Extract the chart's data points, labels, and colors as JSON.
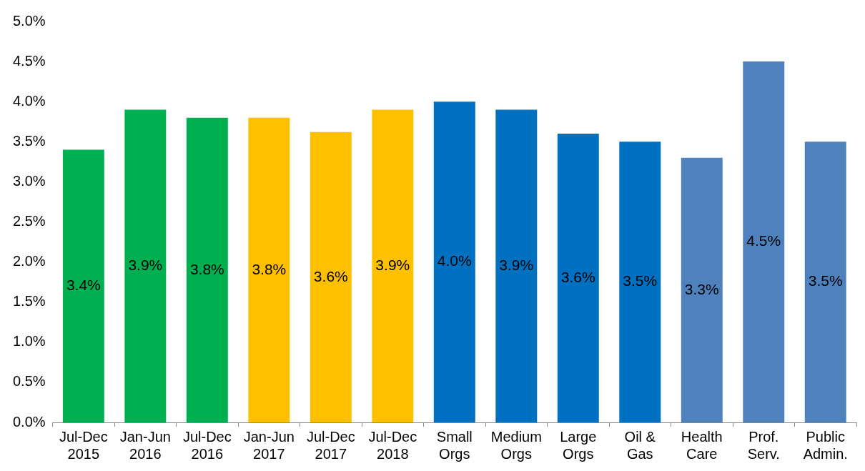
{
  "chart_data": {
    "type": "bar",
    "categories": [
      "Jul-Dec\n2015",
      "Jan-Jun\n2016",
      "Jul-Dec\n2016",
      "Jan-Jun\n2017",
      "Jul-Dec\n2017",
      "Jul-Dec\n2018",
      "Small\nOrgs",
      "Medium\nOrgs",
      "Large\nOrgs",
      "Oil &\nGas",
      "Health\nCare",
      "Prof.\nServ.",
      "Public\nAdmin."
    ],
    "values": [
      3.4,
      3.9,
      3.8,
      3.8,
      3.62,
      3.9,
      4.0,
      3.9,
      3.6,
      3.5,
      3.3,
      4.5,
      3.5
    ],
    "colors": [
      "#00b050",
      "#00b050",
      "#00b050",
      "#ffc000",
      "#ffc000",
      "#ffc000",
      "#0070c0",
      "#0070c0",
      "#0070c0",
      "#0070c0",
      "#4f81bd",
      "#4f81bd",
      "#4f81bd"
    ],
    "value_labels": [
      "3.4%",
      "3.9%",
      "3.8%",
      "3.8%",
      "3.6%",
      "3.9%",
      "4.0%",
      "3.9%",
      "3.6%",
      "3.5%",
      "3.3%",
      "4.5%",
      "3.5%"
    ],
    "ylim": [
      0,
      5
    ],
    "yticks": [
      {
        "value": 0,
        "label": "0.0%"
      },
      {
        "value": 0.5,
        "label": "0.5%"
      },
      {
        "value": 1,
        "label": "1.0%"
      },
      {
        "value": 1.5,
        "label": "1.5%"
      },
      {
        "value": 2,
        "label": "2.0%"
      },
      {
        "value": 2.5,
        "label": "2.5%"
      },
      {
        "value": 3,
        "label": "3.0%"
      },
      {
        "value": 3.5,
        "label": "3.5%"
      },
      {
        "value": 4,
        "label": "4.0%"
      },
      {
        "value": 4.5,
        "label": "4.5%"
      },
      {
        "value": 5,
        "label": "5.0%"
      }
    ],
    "grid": false,
    "legend": false
  }
}
